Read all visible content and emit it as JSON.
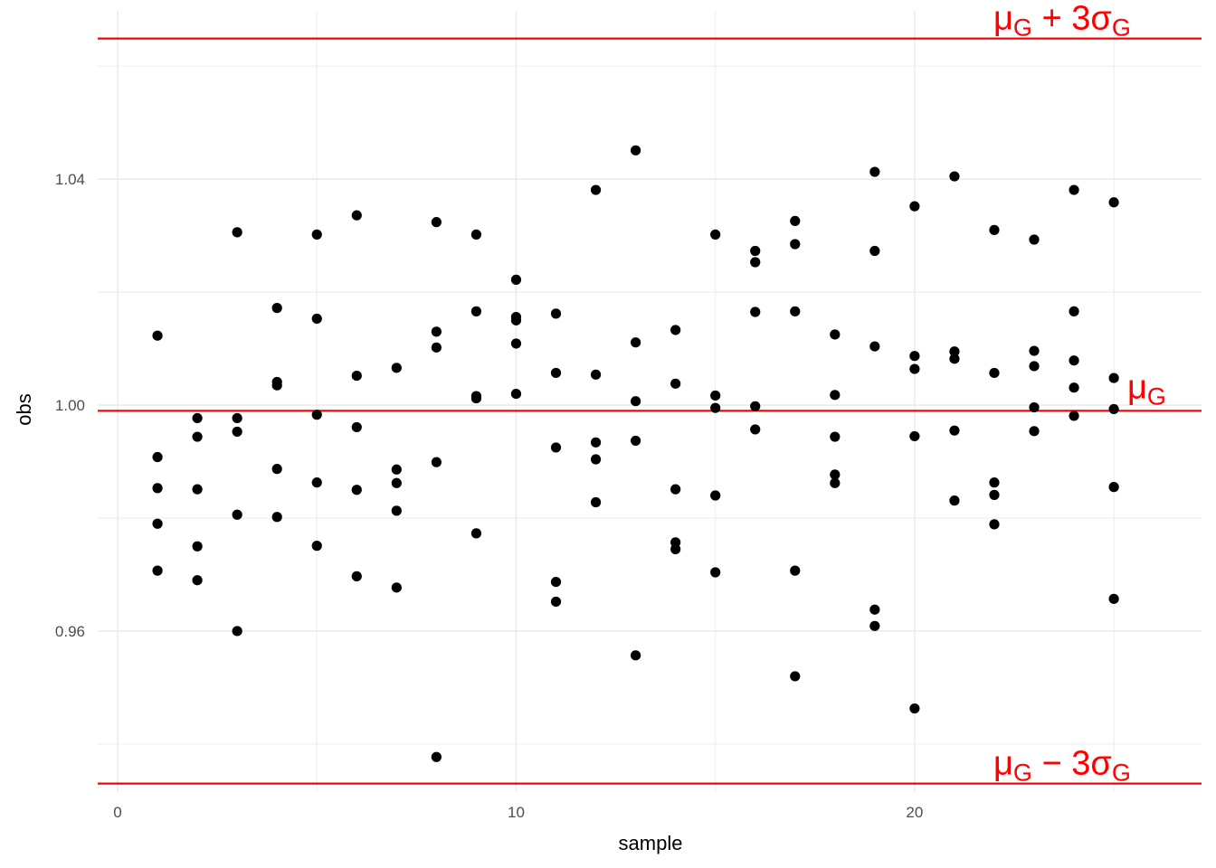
{
  "chart_data": {
    "type": "scatter",
    "title": "",
    "xlabel": "sample",
    "ylabel": "obs",
    "xlim": [
      -0.5,
      27.2
    ],
    "ylim": [
      0.9315,
      1.0698
    ],
    "x_ticks": [
      0,
      10,
      20
    ],
    "x_tick_labels": [
      "0",
      "10",
      "20"
    ],
    "y_ticks": [
      0.96,
      1.04
    ],
    "y_tick_labels": [
      "0.96",
      "1.00",
      "1.04"
    ],
    "y_ticks_all": [
      0.96,
      1.0,
      1.04
    ],
    "grid": true,
    "reference_lines": [
      {
        "name": "upper",
        "y": 1.0649,
        "label_main": "μ",
        "label_sub1": "G",
        "label_mid": " + 3σ",
        "label_sub2": "G"
      },
      {
        "name": "center",
        "y": 0.999,
        "label_main": "μ",
        "label_sub1": "G",
        "label_mid": "",
        "label_sub2": ""
      },
      {
        "name": "lower",
        "y": 0.933,
        "label_main": "μ",
        "label_sub1": "G",
        "label_mid": " − 3σ",
        "label_sub2": "G"
      }
    ],
    "reference_color": "#ff0000",
    "point_color": "#000000",
    "points": [
      {
        "x": 1,
        "y": 1.0123
      },
      {
        "x": 1,
        "y": 0.9908
      },
      {
        "x": 1,
        "y": 0.9853
      },
      {
        "x": 1,
        "y": 0.979
      },
      {
        "x": 1,
        "y": 0.9707
      },
      {
        "x": 2,
        "y": 0.9977
      },
      {
        "x": 2,
        "y": 0.9944
      },
      {
        "x": 2,
        "y": 0.9851
      },
      {
        "x": 2,
        "y": 0.975
      },
      {
        "x": 2,
        "y": 0.969
      },
      {
        "x": 3,
        "y": 1.0306
      },
      {
        "x": 3,
        "y": 0.9977
      },
      {
        "x": 3,
        "y": 0.9953
      },
      {
        "x": 3,
        "y": 0.9806
      },
      {
        "x": 3,
        "y": 0.96
      },
      {
        "x": 4,
        "y": 1.0172
      },
      {
        "x": 4,
        "y": 1.0041
      },
      {
        "x": 4,
        "y": 1.0035
      },
      {
        "x": 4,
        "y": 0.9887
      },
      {
        "x": 4,
        "y": 0.9802
      },
      {
        "x": 5,
        "y": 1.0302
      },
      {
        "x": 5,
        "y": 1.0153
      },
      {
        "x": 5,
        "y": 0.9983
      },
      {
        "x": 5,
        "y": 0.9863
      },
      {
        "x": 5,
        "y": 0.9751
      },
      {
        "x": 6,
        "y": 1.0336
      },
      {
        "x": 6,
        "y": 1.0052
      },
      {
        "x": 6,
        "y": 0.9961
      },
      {
        "x": 6,
        "y": 0.985
      },
      {
        "x": 6,
        "y": 0.9697
      },
      {
        "x": 7,
        "y": 1.0066
      },
      {
        "x": 7,
        "y": 0.9886
      },
      {
        "x": 7,
        "y": 0.9862
      },
      {
        "x": 7,
        "y": 0.9813
      },
      {
        "x": 7,
        "y": 0.9677
      },
      {
        "x": 8,
        "y": 1.0324
      },
      {
        "x": 8,
        "y": 1.013
      },
      {
        "x": 8,
        "y": 1.0102
      },
      {
        "x": 8,
        "y": 0.9899
      },
      {
        "x": 8,
        "y": 0.9377
      },
      {
        "x": 9,
        "y": 1.0302
      },
      {
        "x": 9,
        "y": 1.0166
      },
      {
        "x": 9,
        "y": 1.0016
      },
      {
        "x": 9,
        "y": 1.0012
      },
      {
        "x": 9,
        "y": 0.9773
      },
      {
        "x": 10,
        "y": 1.0222
      },
      {
        "x": 10,
        "y": 1.0156
      },
      {
        "x": 10,
        "y": 1.015
      },
      {
        "x": 10,
        "y": 1.0109
      },
      {
        "x": 10,
        "y": 1.002
      },
      {
        "x": 11,
        "y": 1.0162
      },
      {
        "x": 11,
        "y": 1.0057
      },
      {
        "x": 11,
        "y": 0.9925
      },
      {
        "x": 11,
        "y": 0.9687
      },
      {
        "x": 11,
        "y": 0.9652
      },
      {
        "x": 12,
        "y": 1.0381
      },
      {
        "x": 12,
        "y": 1.0054
      },
      {
        "x": 12,
        "y": 0.9934
      },
      {
        "x": 12,
        "y": 0.9904
      },
      {
        "x": 12,
        "y": 0.9828
      },
      {
        "x": 13,
        "y": 1.0451
      },
      {
        "x": 13,
        "y": 1.0111
      },
      {
        "x": 13,
        "y": 1.0007
      },
      {
        "x": 13,
        "y": 0.9937
      },
      {
        "x": 13,
        "y": 0.9557
      },
      {
        "x": 14,
        "y": 1.0133
      },
      {
        "x": 14,
        "y": 1.0038
      },
      {
        "x": 14,
        "y": 0.9851
      },
      {
        "x": 14,
        "y": 0.9757
      },
      {
        "x": 14,
        "y": 0.9745
      },
      {
        "x": 15,
        "y": 1.0302
      },
      {
        "x": 15,
        "y": 1.0017
      },
      {
        "x": 15,
        "y": 0.9995
      },
      {
        "x": 15,
        "y": 0.984
      },
      {
        "x": 15,
        "y": 0.9704
      },
      {
        "x": 16,
        "y": 1.0273
      },
      {
        "x": 16,
        "y": 1.0253
      },
      {
        "x": 16,
        "y": 1.0165
      },
      {
        "x": 16,
        "y": 0.9998
      },
      {
        "x": 16,
        "y": 0.9957
      },
      {
        "x": 17,
        "y": 1.0326
      },
      {
        "x": 17,
        "y": 1.0285
      },
      {
        "x": 17,
        "y": 1.0166
      },
      {
        "x": 17,
        "y": 0.9707
      },
      {
        "x": 17,
        "y": 0.952
      },
      {
        "x": 18,
        "y": 1.0125
      },
      {
        "x": 18,
        "y": 1.0018
      },
      {
        "x": 18,
        "y": 0.9944
      },
      {
        "x": 18,
        "y": 0.9877
      },
      {
        "x": 18,
        "y": 0.9862
      },
      {
        "x": 19,
        "y": 1.0413
      },
      {
        "x": 19,
        "y": 1.0273
      },
      {
        "x": 19,
        "y": 1.0104
      },
      {
        "x": 19,
        "y": 0.9638
      },
      {
        "x": 19,
        "y": 0.9609
      },
      {
        "x": 20,
        "y": 1.0352
      },
      {
        "x": 20,
        "y": 1.0087
      },
      {
        "x": 20,
        "y": 1.0064
      },
      {
        "x": 20,
        "y": 0.9945
      },
      {
        "x": 20,
        "y": 0.9463
      },
      {
        "x": 21,
        "y": 1.0405
      },
      {
        "x": 21,
        "y": 1.0095
      },
      {
        "x": 21,
        "y": 1.0082
      },
      {
        "x": 21,
        "y": 0.9955
      },
      {
        "x": 21,
        "y": 0.9831
      },
      {
        "x": 22,
        "y": 1.031
      },
      {
        "x": 22,
        "y": 1.0057
      },
      {
        "x": 22,
        "y": 0.9863
      },
      {
        "x": 22,
        "y": 0.9841
      },
      {
        "x": 22,
        "y": 0.9789
      },
      {
        "x": 23,
        "y": 1.0293
      },
      {
        "x": 23,
        "y": 1.0096
      },
      {
        "x": 23,
        "y": 1.0069
      },
      {
        "x": 23,
        "y": 0.9996
      },
      {
        "x": 23,
        "y": 0.9954
      },
      {
        "x": 24,
        "y": 1.0381
      },
      {
        "x": 24,
        "y": 1.0166
      },
      {
        "x": 24,
        "y": 1.0079
      },
      {
        "x": 24,
        "y": 1.0031
      },
      {
        "x": 24,
        "y": 0.9981
      },
      {
        "x": 25,
        "y": 1.0359
      },
      {
        "x": 25,
        "y": 1.0048
      },
      {
        "x": 25,
        "y": 0.9993
      },
      {
        "x": 25,
        "y": 0.9855
      },
      {
        "x": 25,
        "y": 0.9657
      }
    ]
  }
}
